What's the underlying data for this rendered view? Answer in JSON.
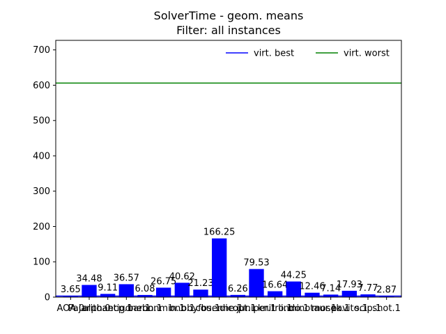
{
  "chart_data": {
    "type": "bar",
    "title": "SolverTime - geom. means",
    "subtitle": "Filter: all instances",
    "xlabel": "",
    "ylabel": "",
    "ylim": [
      0,
      727
    ],
    "yticks": [
      0,
      100,
      200,
      300,
      400,
      500,
      600,
      700
    ],
    "categories": [
      "AOA.0",
      "Pajarito.0",
      "alphaecp.1",
      "antigone.1",
      "baron.1",
      "bonmin.1",
      "bnb.1",
      "bbyfbs.1",
      "couenne.1",
      "dicopt.1",
      "juniper.1",
      "knitro.1",
      "lindo.1",
      "minotaur.1",
      "mosek.1",
      "pavito.1",
      "scip.1",
      "shot.1"
    ],
    "value_labels": [
      "3.65",
      "34.48",
      "9.11",
      "36.57",
      "6.08",
      "26.75",
      "40.62",
      "21.23",
      "166.25",
      "6.26",
      "79.53",
      "16.64",
      "44.25",
      "12.46",
      "7.14",
      "17.93",
      "7.77",
      "2.87"
    ],
    "series": [
      {
        "values": [
          3.65,
          34.48,
          9.11,
          36.57,
          6.08,
          26.75,
          40.62,
          21.23,
          166.25,
          6.26,
          79.53,
          16.64,
          44.25,
          12.46,
          7.14,
          17.93,
          7.77,
          2.87
        ],
        "color": "#0000ff"
      }
    ],
    "reference_lines": [
      {
        "name": "virt. best",
        "value": 2.87,
        "color": "#0000ff"
      },
      {
        "name": "virt. worst",
        "value": 606,
        "color": "#008000"
      }
    ],
    "legend": {
      "placement": "top-right",
      "frame": false
    },
    "grid": false
  }
}
